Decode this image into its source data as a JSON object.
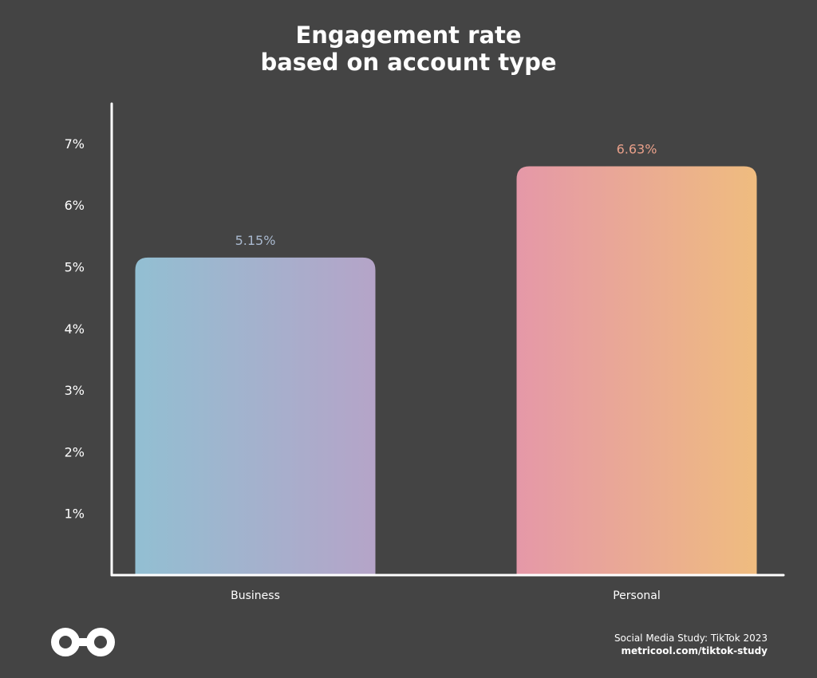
{
  "header": {
    "title": "Engagement rate",
    "subtitle": "based on account type"
  },
  "chart_data": {
    "type": "bar",
    "title": "Engagement rate",
    "subtitle": "based on account type",
    "categories": [
      "Business",
      "Personal"
    ],
    "values": [
      5.15,
      6.63
    ],
    "value_labels": [
      "5.15%",
      "6.63%"
    ],
    "y_ticks": [
      1,
      2,
      3,
      4,
      5,
      6,
      7
    ],
    "y_tick_labels": [
      "1%",
      "2%",
      "3%",
      "4%",
      "5%",
      "6%",
      "7%"
    ],
    "ylim": [
      0,
      7.7
    ],
    "xlabel": "",
    "ylabel": "",
    "grid": false,
    "colors": {
      "business": [
        "#92bfd2",
        "#b5a4c8"
      ],
      "personal": [
        "#e598a8",
        "#efbc7f"
      ],
      "business_label": "#a9b9cf",
      "personal_label": "#e9a08a",
      "axis": "#ffffff",
      "background": "#444444"
    }
  },
  "footer": {
    "source": "Social Media Study: TikTok 2023",
    "url": "metricool.com/tiktok-study"
  },
  "logo": {
    "icon": "infinity-loop-icon"
  }
}
